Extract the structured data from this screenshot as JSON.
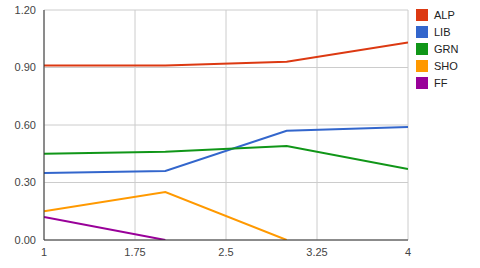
{
  "chart_data": {
    "type": "line",
    "x": [
      1,
      2,
      3,
      4
    ],
    "series": [
      {
        "name": "ALP",
        "color": "#dc3912",
        "values": [
          0.91,
          0.91,
          0.93,
          1.03
        ]
      },
      {
        "name": "LIB",
        "color": "#3366cc",
        "values": [
          0.35,
          0.36,
          0.57,
          0.59
        ]
      },
      {
        "name": "GRN",
        "color": "#109618",
        "values": [
          0.45,
          0.46,
          0.49,
          0.37
        ]
      },
      {
        "name": "SHO",
        "color": "#ff9900",
        "values": [
          0.15,
          0.25,
          0,
          null
        ]
      },
      {
        "name": "FF",
        "color": "#990099",
        "values": [
          0.12,
          0,
          null,
          null
        ]
      }
    ],
    "xlim": [
      1,
      4
    ],
    "xticks": [
      1,
      1.75,
      2.5,
      3.25,
      4
    ],
    "ylim": [
      0,
      1.2
    ],
    "yticks": [
      {
        "value": 0,
        "label": "0.00"
      },
      {
        "value": 0.3,
        "label": "0.30"
      },
      {
        "value": 0.6,
        "label": "0.60"
      },
      {
        "value": 0.9,
        "label": "0.90"
      },
      {
        "value": 1.2,
        "label": "1.20"
      }
    ],
    "grid": true,
    "legend": "right"
  }
}
